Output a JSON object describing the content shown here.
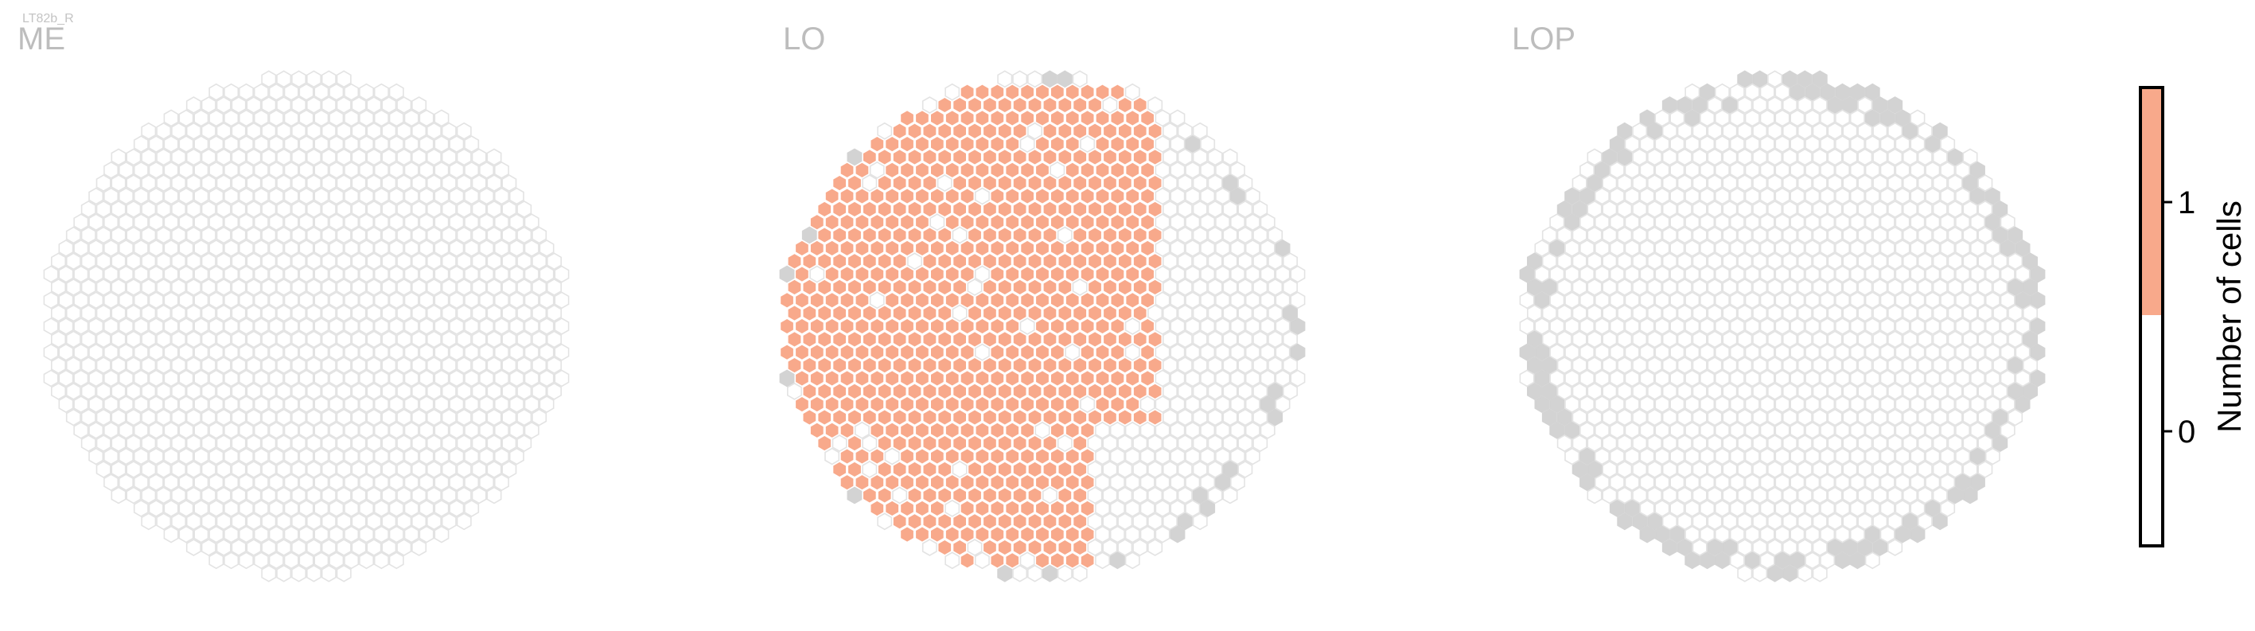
{
  "neuron_label": "LT82b_R",
  "colorbar": {
    "title": "Number of cells",
    "ticks": [
      "0",
      "1"
    ],
    "colors": {
      "zero": "#ffffff",
      "one": "#f8a98b"
    }
  },
  "colors": {
    "empty_fill": "#ffffff",
    "empty_stroke": "#e3e3e3",
    "gray_fill": "#d3d3d3",
    "salmon_fill": "#f8a98b",
    "label_gray": "#bdbdbd"
  },
  "chart_data": {
    "type": "heatmap",
    "description": "Hexagonal column maps of the optic lobe; each hexagon is one column, color = number of cells innervating the column",
    "value_scale": {
      "min": 0,
      "max": 1
    },
    "regions": [
      {
        "name": "ME",
        "colored_columns": "none",
        "gray_columns": "none"
      },
      {
        "name": "LO",
        "colored_columns": "most of left-central region (about 60% of columns)",
        "colored_value": 1,
        "gray_columns": "scattered along left and bottom edge"
      },
      {
        "name": "LOP",
        "colored_columns": "none",
        "gray_columns": "ring of columns along the perimeter"
      }
    ]
  }
}
